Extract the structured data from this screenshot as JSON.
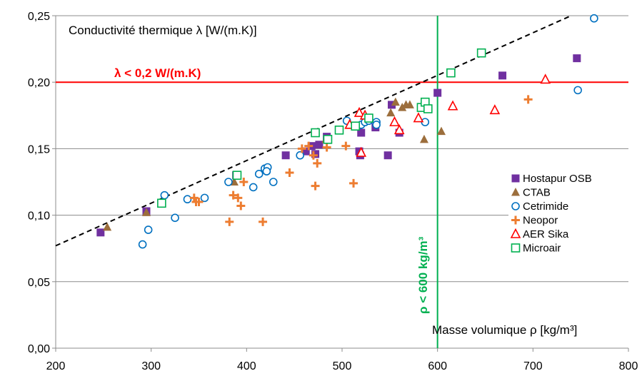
{
  "chart_data": {
    "type": "scatter",
    "title": "",
    "xlabel": "",
    "ylabel": "",
    "xlim": [
      200,
      800
    ],
    "ylim": [
      0,
      0.25
    ],
    "x_ticks": [
      200,
      300,
      400,
      500,
      600,
      700,
      800
    ],
    "y_ticks": [
      0,
      0.05,
      0.1,
      0.15,
      0.2,
      0.25
    ],
    "x_tick_labels": [
      "200",
      "300",
      "400",
      "500",
      "600",
      "700",
      "800"
    ],
    "y_tick_labels": [
      "0,00",
      "0,05",
      "0,10",
      "0,15",
      "0,20",
      "0,25"
    ],
    "grid": "horizontal",
    "legend_position": "right",
    "annotations": {
      "y_quantity": "Conductivité thermique λ [W/(m.K)]",
      "x_quantity": "Masse volumique ρ [kg/m³]",
      "lambda_limit": "λ < 0,2 W/(m.K)",
      "rho_limit": "ρ < 600 kg/m³"
    },
    "reference_lines": {
      "lambda_limit_y": 0.2,
      "rho_limit_x": 600,
      "trend_line": [
        [
          200,
          0.077
        ],
        [
          740,
          0.25
        ]
      ],
      "lambda_color": "#ff0000",
      "rho_color": "#00b050"
    },
    "series": [
      {
        "name": "Hostapur OSB",
        "marker": "square-filled",
        "color": "#7030a0",
        "x": [
          247,
          295,
          389,
          441,
          462,
          468,
          472,
          476,
          484,
          518,
          519,
          520,
          535,
          548,
          552,
          560,
          600,
          668,
          746
        ],
        "y": [
          0.087,
          0.103,
          0.13,
          0.145,
          0.148,
          0.152,
          0.146,
          0.153,
          0.159,
          0.148,
          0.145,
          0.162,
          0.166,
          0.145,
          0.183,
          0.162,
          0.192,
          0.205,
          0.218
        ]
      },
      {
        "name": "CTAB",
        "marker": "triangle-filled",
        "color": "#9c6e3c",
        "x": [
          254,
          295,
          387,
          483,
          551,
          556,
          563,
          567,
          571,
          590,
          586,
          604
        ],
        "y": [
          0.091,
          0.102,
          0.125,
          0.157,
          0.177,
          0.185,
          0.181,
          0.183,
          0.183,
          0.18,
          0.157,
          0.163
        ]
      },
      {
        "name": "Cetrimide",
        "marker": "circle-open",
        "color": "#0070c0",
        "x": [
          291,
          297,
          314,
          325,
          338,
          356,
          381,
          407,
          413,
          419,
          422,
          421,
          428,
          456,
          505,
          520,
          524,
          528,
          536,
          536,
          587,
          747,
          764
        ],
        "y": [
          0.078,
          0.089,
          0.115,
          0.098,
          0.112,
          0.113,
          0.125,
          0.121,
          0.131,
          0.135,
          0.136,
          0.133,
          0.125,
          0.145,
          0.171,
          0.168,
          0.17,
          0.171,
          0.17,
          0.168,
          0.17,
          0.194,
          0.248
        ]
      },
      {
        "name": "Neopor",
        "marker": "plus",
        "color": "#ed7d31",
        "x": [
          345,
          347,
          350,
          382,
          386,
          391,
          394,
          397,
          417,
          445,
          458,
          465,
          470,
          472,
          474,
          484,
          504,
          512,
          695
        ],
        "y": [
          0.113,
          0.11,
          0.11,
          0.095,
          0.115,
          0.113,
          0.107,
          0.125,
          0.095,
          0.132,
          0.15,
          0.152,
          0.145,
          0.122,
          0.139,
          0.151,
          0.152,
          0.124,
          0.187
        ]
      },
      {
        "name": "AER Sika",
        "marker": "triangle-open",
        "color": "#ff0000",
        "x": [
          508,
          518,
          520,
          524,
          555,
          560,
          580,
          616,
          660,
          713
        ],
        "y": [
          0.168,
          0.177,
          0.147,
          0.175,
          0.17,
          0.164,
          0.173,
          0.182,
          0.179,
          0.202
        ]
      },
      {
        "name": "Microair",
        "marker": "square-open",
        "color": "#00b050",
        "x": [
          311,
          390,
          472,
          485,
          497,
          514,
          528,
          583,
          587,
          590,
          614,
          646
        ],
        "y": [
          0.109,
          0.13,
          0.162,
          0.157,
          0.164,
          0.167,
          0.173,
          0.181,
          0.185,
          0.18,
          0.207,
          0.222
        ]
      }
    ]
  }
}
